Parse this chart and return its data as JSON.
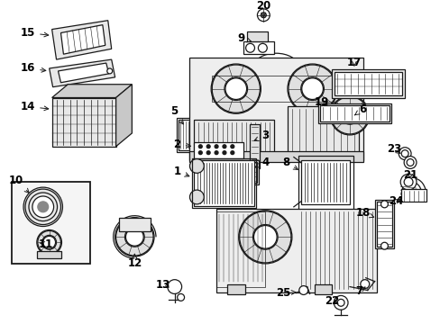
{
  "bg_color": "#ffffff",
  "line_color": "#1a1a1a",
  "label_color": "#000000",
  "fig_w": 4.89,
  "fig_h": 3.6,
  "dpi": 100,
  "label_fontsize": 8.5,
  "label_fontweight": "bold"
}
